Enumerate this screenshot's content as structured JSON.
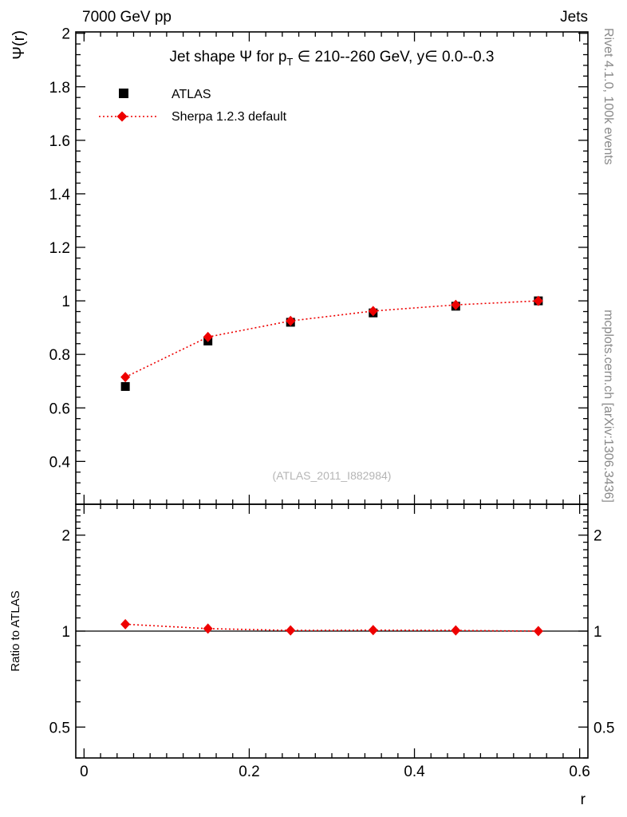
{
  "header": {
    "beam": "7000 GeV pp",
    "group": "Jets"
  },
  "side_notes": {
    "top_right": "Rivet 4.1.0,  100k events",
    "bottom_right": "mcplots.cern.ch [arXiv:1306.3436]"
  },
  "watermark": "(ATLAS_2011_I882984)",
  "colors": {
    "accent_red": "#ee0000",
    "note_gray": "#8a8a8a",
    "watermark_gray": "#b5b5b5"
  },
  "chart_data": {
    "type": "scatter",
    "title_parts": {
      "pre": "Jet shape Ψ for p",
      "sub": "T",
      "post": " ∈ 210--260 GeV, y∈ 0.0--0.3"
    },
    "xlabel": "r",
    "ylabel": "Ψ(r)",
    "ratio_ylabel": "Ratio to ATLAS",
    "x": [
      0.05,
      0.15,
      0.25,
      0.35,
      0.45,
      0.55
    ],
    "series": [
      {
        "name": "ATLAS",
        "marker": "square",
        "color": "#000000",
        "values": [
          0.68,
          0.85,
          0.92,
          0.955,
          0.98,
          1.0
        ],
        "yerr": [
          0.012,
          0.01,
          0.008,
          0.006,
          0.004,
          0.003
        ]
      },
      {
        "name": "Sherpa 1.2.3 default",
        "marker": "diamond",
        "color": "#ee0000",
        "line": "dotted",
        "values": [
          0.715,
          0.865,
          0.925,
          0.962,
          0.985,
          1.0
        ]
      }
    ],
    "ratio": {
      "reference": "ATLAS",
      "values": [
        1.051,
        1.018,
        1.005,
        1.007,
        1.005,
        1.0
      ]
    },
    "xlim": [
      -0.01,
      0.61
    ],
    "ylim": [
      0.24,
      2.005
    ],
    "ratio_ylim": [
      0.4,
      2.5
    ],
    "ratio_yscale": "log",
    "grid": false,
    "legend_position": "top-left",
    "xticks": {
      "values": [
        0,
        0.2,
        0.4,
        0.6
      ],
      "labels": [
        "0",
        "0.2",
        "0.4",
        "0.6"
      ]
    },
    "yticks": {
      "values": [
        0.4,
        0.6,
        0.8,
        1.0,
        1.2,
        1.4,
        1.6,
        1.8,
        2.0
      ],
      "labels": [
        "0.4",
        "0.6",
        "0.8",
        "1",
        "1.2",
        "1.4",
        "1.6",
        "1.8",
        "2"
      ]
    },
    "ratio_yticks": {
      "values": [
        0.5,
        1,
        2
      ],
      "labels": [
        "0.5",
        "1",
        "2"
      ]
    }
  }
}
